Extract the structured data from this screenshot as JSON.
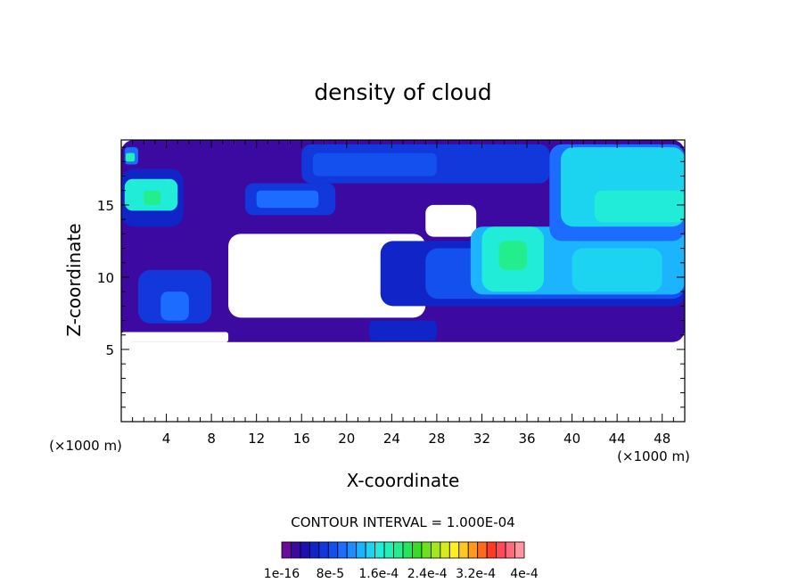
{
  "chart_data": {
    "type": "heatmap",
    "title": "density of cloud",
    "xlabel": "X-coordinate",
    "ylabel": "Z-coordinate",
    "x_unit": "(×1000 m)",
    "y_unit": "(×1000 m)",
    "xlim": [
      0,
      50
    ],
    "ylim": [
      0,
      19.5
    ],
    "x_ticks": [
      4,
      8,
      12,
      16,
      20,
      24,
      28,
      32,
      36,
      40,
      44,
      48
    ],
    "y_ticks": [
      5,
      10,
      15
    ],
    "contour_interval_text": "CONTOUR INTERVAL = 1.000E-04",
    "colorbar": {
      "colors": [
        "#6a0a9a",
        "#3c0aa0",
        "#1e10b0",
        "#1024c8",
        "#1238dc",
        "#1450ee",
        "#1c6cff",
        "#1e8cff",
        "#1cb4ff",
        "#1cd4f0",
        "#20ecd8",
        "#22f0b4",
        "#24ee8c",
        "#28e45c",
        "#36dc28",
        "#6ee020",
        "#a4e81c",
        "#d8ec1c",
        "#fff01e",
        "#ffc81e",
        "#ff9a1e",
        "#ff6a20",
        "#ff3c22",
        "#ff4a5a",
        "#ff6a7c",
        "#ff96a0"
      ],
      "tick_labels": [
        "1e-16",
        "8e-5",
        "1.6e-4",
        "2.4e-4",
        "3.2e-4",
        "4e-4"
      ],
      "range": [
        1e-16,
        0.0004
      ]
    },
    "regions": [
      {
        "level": 1,
        "x": [
          0,
          50
        ],
        "z": [
          5.5,
          19.5
        ]
      },
      {
        "level": 0,
        "x": [
          9.5,
          27.0
        ],
        "z": [
          7.2,
          13.0
        ]
      },
      {
        "level": 0,
        "x": [
          27.0,
          31.5
        ],
        "z": [
          12.8,
          15.0
        ]
      },
      {
        "level": 0,
        "x": [
          0,
          9.5
        ],
        "z": [
          5.5,
          6.2
        ]
      },
      {
        "level": 0,
        "x": [
          0,
          50
        ],
        "z": [
          0,
          5.5
        ]
      },
      {
        "level": 4,
        "x": [
          16.0,
          38.0
        ],
        "z": [
          16.5,
          19.2
        ]
      },
      {
        "level": 5,
        "x": [
          17.0,
          28.0
        ],
        "z": [
          17.0,
          18.6
        ]
      },
      {
        "level": 4,
        "x": [
          11.0,
          19.0
        ],
        "z": [
          14.3,
          16.5
        ]
      },
      {
        "level": 6,
        "x": [
          12.0,
          17.5
        ],
        "z": [
          14.8,
          16.0
        ]
      },
      {
        "level": 3,
        "x": [
          0,
          5.5
        ],
        "z": [
          13.5,
          17.5
        ]
      },
      {
        "level": 10,
        "x": [
          0.3,
          5.0
        ],
        "z": [
          14.6,
          16.8
        ]
      },
      {
        "level": 12,
        "x": [
          2.0,
          3.5
        ],
        "z": [
          15.0,
          16.0
        ]
      },
      {
        "level": 6,
        "x": [
          0.3,
          1.5
        ],
        "z": [
          17.8,
          19.0
        ]
      },
      {
        "level": 11,
        "x": [
          0.4,
          1.2
        ],
        "z": [
          18.0,
          18.6
        ]
      },
      {
        "level": 3,
        "x": [
          23.0,
          50.0
        ],
        "z": [
          8.0,
          12.5
        ]
      },
      {
        "level": 5,
        "x": [
          27.0,
          50.0
        ],
        "z": [
          8.5,
          12.0
        ]
      },
      {
        "level": 8,
        "x": [
          31.0,
          50.0
        ],
        "z": [
          8.8,
          13.5
        ]
      },
      {
        "level": 10,
        "x": [
          32.0,
          37.5
        ],
        "z": [
          9.0,
          13.5
        ]
      },
      {
        "level": 12,
        "x": [
          33.5,
          36.0
        ],
        "z": [
          10.5,
          12.5
        ]
      },
      {
        "level": 6,
        "x": [
          38.0,
          50.0
        ],
        "z": [
          12.5,
          19.2
        ]
      },
      {
        "level": 9,
        "x": [
          39.0,
          50.0
        ],
        "z": [
          13.5,
          19.0
        ]
      },
      {
        "level": 10,
        "x": [
          42.0,
          50.0
        ],
        "z": [
          13.8,
          16.0
        ]
      },
      {
        "level": 9,
        "x": [
          40.0,
          48.0
        ],
        "z": [
          9.0,
          12.0
        ]
      },
      {
        "level": 4,
        "x": [
          1.5,
          8.0
        ],
        "z": [
          6.8,
          10.5
        ]
      },
      {
        "level": 6,
        "x": [
          3.5,
          6.0
        ],
        "z": [
          7.0,
          9.0
        ]
      },
      {
        "level": 3,
        "x": [
          22.0,
          28.0
        ],
        "z": [
          5.6,
          7.0
        ]
      }
    ]
  }
}
